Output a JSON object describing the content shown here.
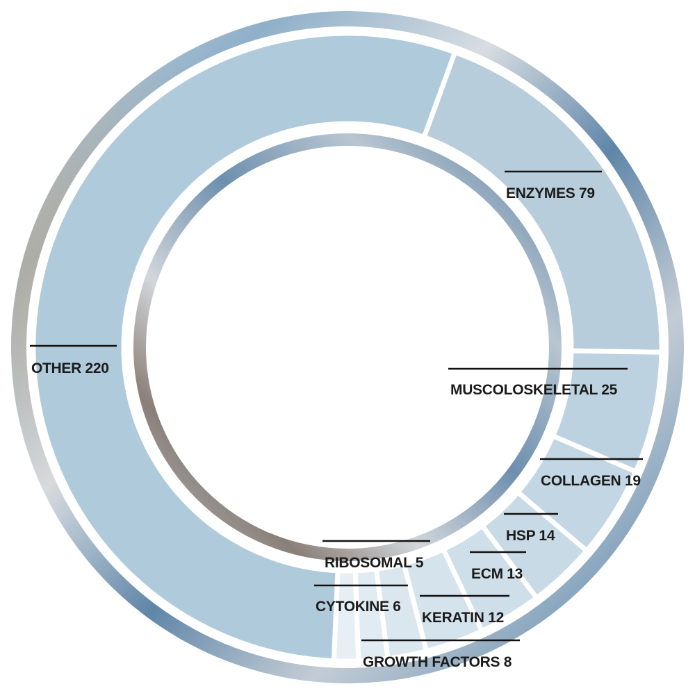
{
  "chart_data": {
    "type": "pie",
    "style": "donut",
    "categories": [
      "ENZYMES",
      "MUSCOLOSKELETAL",
      "COLLAGEN",
      "HSP",
      "ECM",
      "KERATIN",
      "GROWTH FACTORS",
      "CYTOKINE",
      "RIBOSOMAL",
      "OTHER"
    ],
    "values": [
      79,
      25,
      19,
      14,
      13,
      12,
      8,
      6,
      5,
      220
    ],
    "labels": [
      "ENZYMES 79",
      "MUSCOLOSKELETAL 25",
      "COLLAGEN 19",
      "HSP 14",
      "ECM 13",
      "KERATIN 12",
      "GROWTH FACTORS 8",
      "CYTOKINE 6",
      "RIBOSOMAL 5",
      "OTHER 220"
    ],
    "slice_colors": [
      "#b7cddb",
      "#bcd2e0",
      "#c2d6e3",
      "#c8dae6",
      "#cfdfe9",
      "#d5e3ec",
      "#dbe7ef",
      "#e1ebf2",
      "#e7eff5",
      "#afcadb"
    ],
    "legend": "none",
    "title": "",
    "start_angle_deg": 20
  },
  "colors": {
    "ring_blue": "#6e93b3",
    "ring_light": "#c9d3dc",
    "separator": "#ffffff",
    "label_text": "#1b1b1b"
  }
}
